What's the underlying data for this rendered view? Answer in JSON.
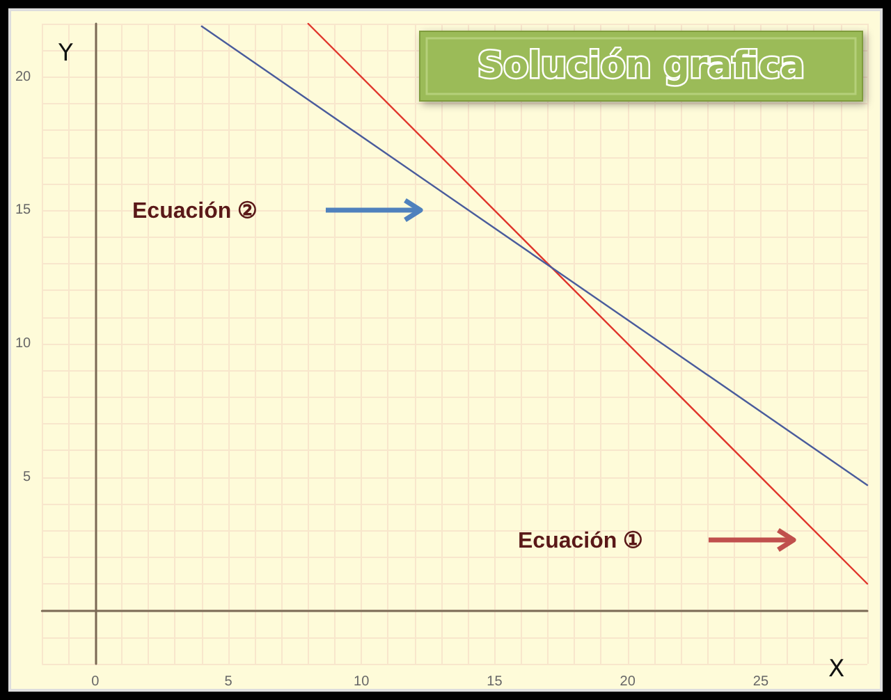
{
  "chart_data": {
    "type": "line",
    "title": "Solución grafica",
    "xlabel": "X",
    "ylabel": "Y",
    "xlim": [
      -2,
      29
    ],
    "ylim": [
      -2,
      22
    ],
    "xticks": [
      0,
      5,
      10,
      15,
      20,
      25
    ],
    "yticks": [
      5,
      10,
      15,
      20
    ],
    "grid": true,
    "marker": "none",
    "line_style": "solid",
    "series": [
      {
        "color": "#e0352b",
        "x": [
          8,
          29
        ],
        "values": [
          22,
          1
        ]
      },
      {
        "color": "#4a5c9c",
        "x": [
          4,
          29
        ],
        "values": [
          21.9,
          4.7
        ]
      }
    ],
    "annotations": [
      "Ecuación ②",
      "Ecuación ①"
    ]
  }
}
